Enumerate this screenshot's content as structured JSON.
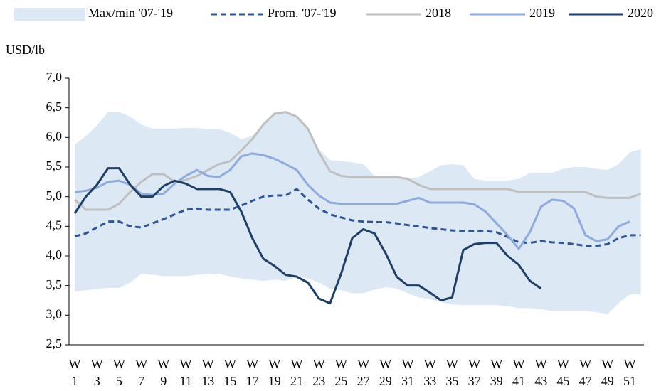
{
  "chart_data": {
    "type": "line",
    "y_label": "USD/lb",
    "categories": [
      "W\n1",
      null,
      "W\n3",
      null,
      "W\n5",
      null,
      "W\n7",
      null,
      "W\n9",
      null,
      "W\n11",
      null,
      "W\n13",
      null,
      "W\n15",
      null,
      "W\n17",
      null,
      "W\n19",
      null,
      "W\n21",
      null,
      "W\n23",
      null,
      "W\n25",
      null,
      "W\n27",
      null,
      "W\n29",
      null,
      "W\n31",
      null,
      "W\n33",
      null,
      "W\n35",
      null,
      "W\n37",
      null,
      "W\n39",
      null,
      "W\n41",
      null,
      "W\n43",
      null,
      "W\n45",
      null,
      "W\n47",
      null,
      "W\n49",
      null,
      "W\n51",
      null
    ],
    "ylim": [
      2.5,
      7.0
    ],
    "yticks": [
      {
        "value": 2.5,
        "label": "2,5"
      },
      {
        "value": 3.0,
        "label": "3,0"
      },
      {
        "value": 3.5,
        "label": "3,5"
      },
      {
        "value": 4.0,
        "label": "4,0"
      },
      {
        "value": 4.5,
        "label": "4,5"
      },
      {
        "value": 5.0,
        "label": "5,0"
      },
      {
        "value": 5.5,
        "label": "5,5"
      },
      {
        "value": 6.0,
        "label": "6,0"
      },
      {
        "value": 6.5,
        "label": "6,5"
      },
      {
        "value": 7.0,
        "label": "7,0"
      }
    ],
    "band": {
      "name": "Max/min '07-'19",
      "color": "#dde8f5",
      "upper": [
        5.88,
        6.02,
        6.2,
        6.43,
        6.43,
        6.35,
        6.22,
        6.15,
        6.15,
        6.15,
        6.16,
        6.16,
        6.14,
        6.14,
        6.08,
        5.97,
        6.03,
        6.22,
        6.4,
        6.43,
        6.35,
        6.15,
        5.8,
        5.62,
        5.6,
        5.58,
        5.55,
        5.35,
        5.35,
        5.33,
        5.3,
        5.33,
        5.43,
        5.53,
        5.55,
        5.53,
        5.3,
        5.27,
        5.27,
        5.27,
        5.3,
        5.4,
        5.4,
        5.4,
        5.47,
        5.5,
        5.5,
        5.47,
        5.45,
        5.55,
        5.75,
        5.8
      ],
      "lower": [
        3.4,
        3.42,
        3.44,
        3.46,
        3.46,
        3.55,
        3.7,
        3.68,
        3.66,
        3.66,
        3.66,
        3.68,
        3.7,
        3.7,
        3.65,
        3.62,
        3.6,
        3.58,
        3.6,
        3.58,
        3.65,
        3.62,
        3.55,
        3.45,
        3.42,
        3.37,
        3.37,
        3.43,
        3.47,
        3.45,
        3.37,
        3.3,
        3.27,
        3.22,
        3.18,
        3.17,
        3.17,
        3.17,
        3.17,
        3.15,
        3.12,
        3.12,
        3.1,
        3.07,
        3.07,
        3.07,
        3.07,
        3.05,
        3.02,
        3.2,
        3.35,
        3.35
      ]
    },
    "series": [
      {
        "name": "Prom. '07-'19",
        "color": "#2f5597",
        "dashed": true,
        "values": [
          4.33,
          4.38,
          4.48,
          4.58,
          4.58,
          4.5,
          4.48,
          4.55,
          4.62,
          4.7,
          4.78,
          4.8,
          4.78,
          4.78,
          4.78,
          4.85,
          4.93,
          5.0,
          5.02,
          5.02,
          5.13,
          4.95,
          4.8,
          4.7,
          4.65,
          4.6,
          4.58,
          4.57,
          4.57,
          4.55,
          4.52,
          4.5,
          4.47,
          4.45,
          4.43,
          4.42,
          4.42,
          4.42,
          4.4,
          4.32,
          4.23,
          4.22,
          4.25,
          4.23,
          4.22,
          4.2,
          4.17,
          4.17,
          4.2,
          4.3,
          4.35,
          4.35
        ]
      },
      {
        "name": "2018",
        "color": "#bfbfbf",
        "values": [
          4.95,
          4.78,
          4.78,
          4.78,
          4.88,
          5.08,
          5.25,
          5.38,
          5.38,
          5.25,
          5.28,
          5.35,
          5.45,
          5.55,
          5.6,
          5.78,
          5.97,
          6.22,
          6.4,
          6.43,
          6.35,
          6.15,
          5.75,
          5.43,
          5.35,
          5.33,
          5.33,
          5.33,
          5.33,
          5.33,
          5.3,
          5.2,
          5.13,
          5.13,
          5.13,
          5.13,
          5.13,
          5.13,
          5.13,
          5.13,
          5.08,
          5.08,
          5.08,
          5.08,
          5.08,
          5.08,
          5.08,
          5.0,
          4.98,
          4.98,
          4.98,
          5.05
        ]
      },
      {
        "name": "2019",
        "color": "#8faadc",
        "values": [
          5.08,
          5.1,
          5.15,
          5.25,
          5.27,
          5.2,
          5.05,
          5.03,
          5.05,
          5.22,
          5.35,
          5.45,
          5.35,
          5.33,
          5.45,
          5.68,
          5.73,
          5.7,
          5.64,
          5.55,
          5.45,
          5.2,
          5.02,
          4.9,
          4.88,
          4.88,
          4.88,
          4.88,
          4.88,
          4.88,
          4.93,
          4.98,
          4.9,
          4.9,
          4.9,
          4.9,
          4.87,
          4.75,
          4.55,
          4.35,
          4.12,
          4.4,
          4.83,
          4.95,
          4.93,
          4.8,
          4.35,
          4.25,
          4.28,
          4.5,
          4.58,
          null
        ]
      },
      {
        "name": "2020",
        "color": "#1f3f66",
        "values": [
          4.72,
          5.0,
          5.2,
          5.48,
          5.48,
          5.2,
          5.0,
          5.0,
          5.18,
          5.27,
          5.22,
          5.13,
          5.13,
          5.13,
          5.08,
          4.75,
          4.3,
          3.95,
          3.83,
          3.68,
          3.65,
          3.55,
          3.28,
          3.2,
          3.7,
          4.3,
          4.45,
          4.38,
          4.05,
          3.65,
          3.5,
          3.5,
          3.38,
          3.25,
          3.3,
          4.1,
          4.2,
          4.22,
          4.22,
          4.0,
          3.85,
          3.58,
          3.45,
          null,
          null,
          null,
          null,
          null,
          null,
          null,
          null,
          null
        ]
      }
    ]
  }
}
